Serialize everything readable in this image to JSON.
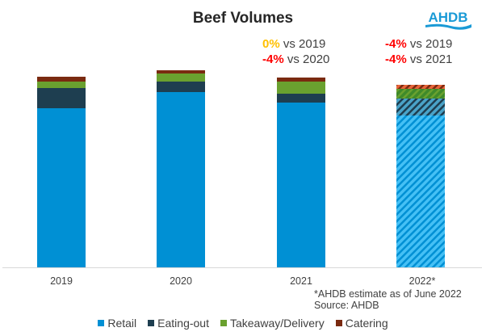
{
  "chart_data": {
    "type": "bar",
    "stacked": true,
    "title": "Beef Volumes",
    "xlabel": "",
    "ylabel": "",
    "ylim": [
      0,
      260
    ],
    "grid": false,
    "legend_position": "bottom",
    "categories": [
      "2019",
      "2020",
      "2021",
      "2022*"
    ],
    "estimated_categories": [
      "2022*"
    ],
    "series": [
      {
        "name": "Retail",
        "color": "#0090d4",
        "values": [
          197,
          217,
          204,
          188
        ]
      },
      {
        "name": "Eating-out",
        "color": "#1e3e50",
        "values": [
          25,
          13,
          11,
          21
        ]
      },
      {
        "name": "Takeaway/Delivery",
        "color": "#6aa12f",
        "values": [
          8,
          10,
          15,
          12
        ]
      },
      {
        "name": "Catering",
        "color": "#7a2a10",
        "values": [
          6,
          4,
          5,
          5
        ]
      }
    ],
    "annotations": [
      {
        "category": "2021",
        "lines": [
          {
            "value": "0%",
            "color": "#ffc000",
            "text": " vs 2019"
          },
          {
            "value": "-4%",
            "color": "#ff0000",
            "text": " vs 2020"
          }
        ]
      },
      {
        "category": "2022*",
        "lines": [
          {
            "value": "-4%",
            "color": "#ff0000",
            "text": " vs 2019"
          },
          {
            "value": "-4%",
            "color": "#ff0000",
            "text": " vs 2021"
          }
        ]
      }
    ],
    "footnote": "*AHDB estimate as of June 2022",
    "source": "Source: AHDB"
  },
  "logo": {
    "text": "AHDB",
    "color": "#1a9ad6"
  }
}
